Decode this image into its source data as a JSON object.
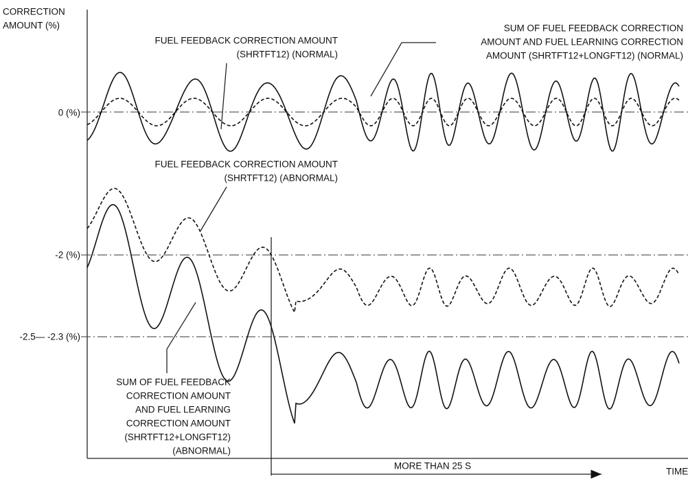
{
  "axis": {
    "y_label": [
      "CORRECTION",
      "AMOUNT (%)"
    ],
    "levels": [
      "0 (%)",
      "-2 (%)",
      "-2.5— -2.3 (%)"
    ],
    "x_label": "TIME",
    "duration": "MORE THAN 25 S"
  },
  "annotations": {
    "normal_feedback": [
      "FUEL FEEDBACK CORRECTION AMOUNT",
      "(SHRTFT12) (NORMAL)"
    ],
    "normal_sum": [
      "SUM OF FUEL FEEDBACK CORRECTION",
      "AMOUNT AND FUEL LEARNING CORRECTION",
      "AMOUNT (SHRTFT12+LONGFT12) (NORMAL)"
    ],
    "abnormal_feedback": [
      "FUEL FEEDBACK CORRECTION AMOUNT",
      "(SHRTFT12) (ABNORMAL)"
    ],
    "abnormal_sum": [
      "SUM OF FUEL FEEDBACK",
      "CORRECTION AMOUNT",
      "AND FUEL LEARNING",
      "CORRECTION AMOUNT",
      "(SHRTFT12+LONGFT12)",
      "(ABNORMAL)"
    ]
  }
}
